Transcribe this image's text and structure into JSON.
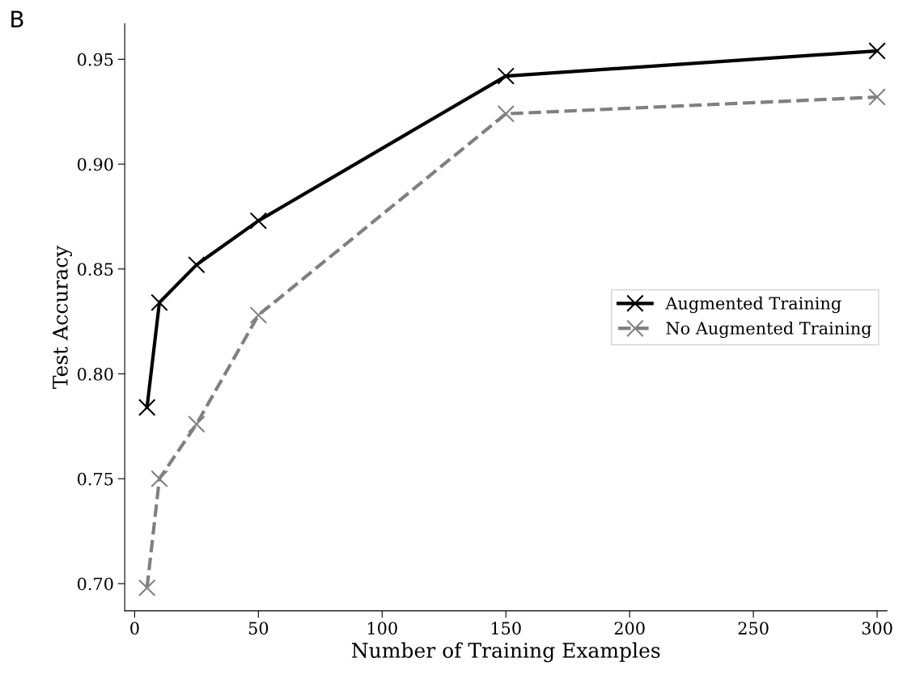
{
  "chart_data": {
    "type": "line",
    "xlabel": "Number of Training Examples",
    "ylabel": "Test Accuracy",
    "annotations": [
      "B"
    ],
    "x": [
      5,
      10,
      25,
      50,
      150,
      300
    ],
    "series": [
      {
        "name": "Augmented Training",
        "color": "#000000",
        "values": [
          0.784,
          0.834,
          0.852,
          0.873,
          0.942,
          0.954
        ],
        "line_style": "solid"
      },
      {
        "name": "No Augmented Training",
        "color": "#808080",
        "values": [
          0.698,
          0.75,
          0.776,
          0.828,
          0.924,
          0.932
        ],
        "line_style": "dashed"
      }
    ],
    "marker": "cross",
    "xlim": [
      -4,
      304
    ],
    "ylim": [
      0.687,
      0.967
    ],
    "xticks": [
      0,
      50,
      100,
      150,
      200,
      250,
      300
    ],
    "yticks": [
      {
        "value": 0.7,
        "label": "0.70"
      },
      {
        "value": 0.75,
        "label": "0.75"
      },
      {
        "value": 0.8,
        "label": "0.80"
      },
      {
        "value": 0.85,
        "label": "0.85"
      },
      {
        "value": 0.9,
        "label": "0.90"
      },
      {
        "value": 0.95,
        "label": "0.95"
      }
    ],
    "legend": "center right",
    "grid": false
  }
}
